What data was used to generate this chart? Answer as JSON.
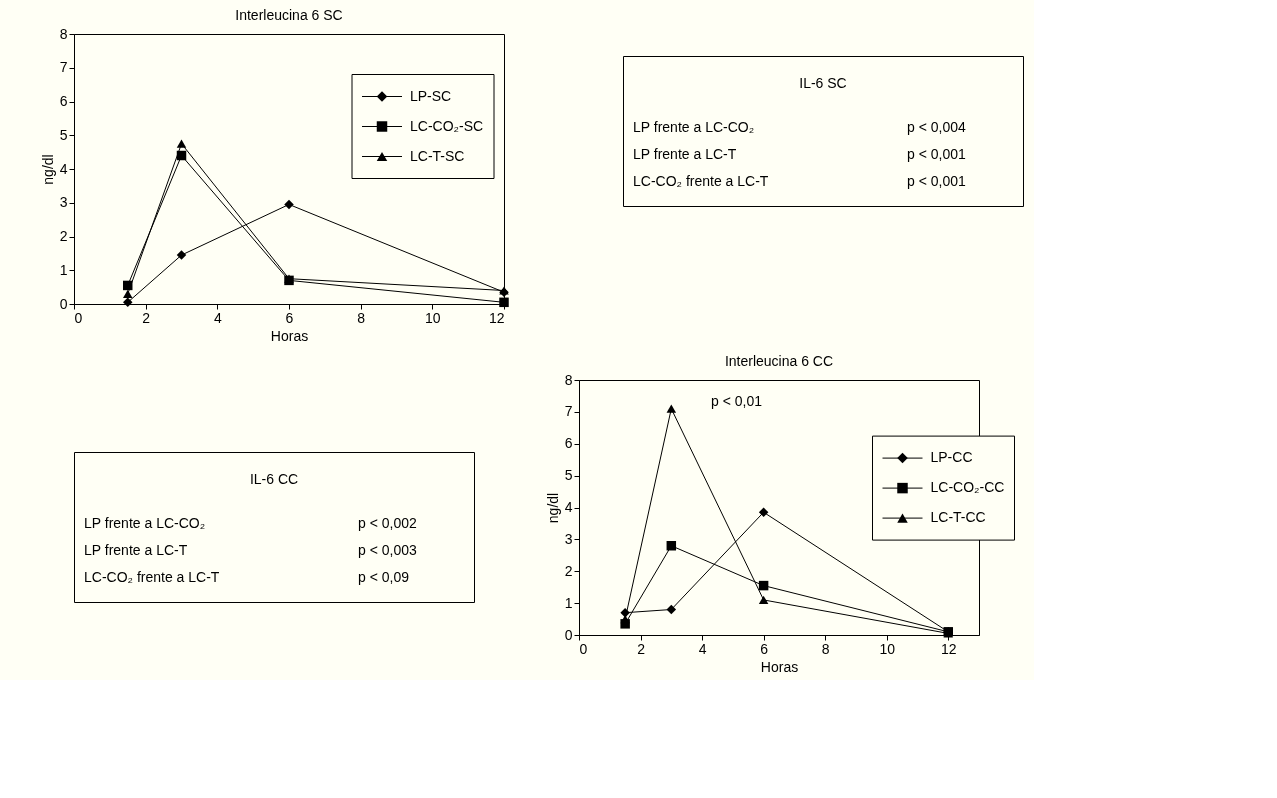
{
  "chart_data": [
    {
      "type": "line",
      "title": "Interleucina 6 SC",
      "xlabel": "Horas",
      "ylabel": "ng/dl",
      "xlim": [
        0,
        12
      ],
      "xticks": [
        0,
        2,
        4,
        6,
        8,
        10,
        12
      ],
      "ylim": [
        0,
        8
      ],
      "yticks": [
        0,
        1,
        2,
        3,
        4,
        5,
        6,
        7,
        8
      ],
      "legend": "top right",
      "grid": false,
      "series": [
        {
          "name": "LP-SC",
          "color": "#000000",
          "marker": "diamond",
          "x": [
            1.5,
            3,
            6,
            12
          ],
          "values": [
            0.05,
            1.45,
            2.95,
            0.35
          ]
        },
        {
          "name": "LC-CO₂-SC",
          "color": "#000000",
          "marker": "square",
          "x": [
            1.5,
            3,
            6,
            12
          ],
          "values": [
            0.55,
            4.4,
            0.7,
            0.05
          ]
        },
        {
          "name": "LC-T-SC",
          "color": "#000000",
          "marker": "triangle",
          "x": [
            1.5,
            3,
            6,
            12
          ],
          "values": [
            0.3,
            4.75,
            0.75,
            0.4
          ]
        }
      ]
    },
    {
      "type": "other",
      "title": "IL-6 SC",
      "annotations": [
        "LP frente a LC-CO₂",
        "p < 0,004",
        "LP frente a LC-T",
        "p < 0,001",
        "LC-CO₂ frente a LC-T",
        "p < 0,001"
      ]
    },
    {
      "type": "other",
      "title": "IL-6 CC",
      "annotations": [
        "LP frente a LC-CO₂",
        "p < 0,002",
        "LP frente a LC-T",
        "p < 0,003",
        "LC-CO₂ frente a LC-T",
        "p < 0,09"
      ]
    },
    {
      "type": "line",
      "title": "Interleucina 6 CC",
      "xlabel": "Horas",
      "ylabel": "ng/dl",
      "xlim": [
        0,
        13
      ],
      "xticks": [
        0,
        2,
        4,
        6,
        8,
        10,
        12
      ],
      "ylim": [
        0,
        8
      ],
      "yticks": [
        0,
        1,
        2,
        3,
        4,
        5,
        6,
        7,
        8
      ],
      "legend": "right",
      "grid": false,
      "annotations": [
        "p < 0,01"
      ],
      "series": [
        {
          "name": "LP-CC",
          "color": "#000000",
          "marker": "diamond",
          "x": [
            1.5,
            3,
            6,
            12
          ],
          "values": [
            0.7,
            0.8,
            3.85,
            0.1
          ]
        },
        {
          "name": "LC-CO₂-CC",
          "color": "#000000",
          "marker": "square",
          "x": [
            1.5,
            3,
            6,
            12
          ],
          "values": [
            0.35,
            2.8,
            1.55,
            0.1
          ]
        },
        {
          "name": "LC-T-CC",
          "color": "#000000",
          "marker": "triangle",
          "x": [
            1.5,
            3,
            6,
            12
          ],
          "values": [
            0.5,
            7.1,
            1.1,
            0.05
          ]
        }
      ]
    }
  ]
}
